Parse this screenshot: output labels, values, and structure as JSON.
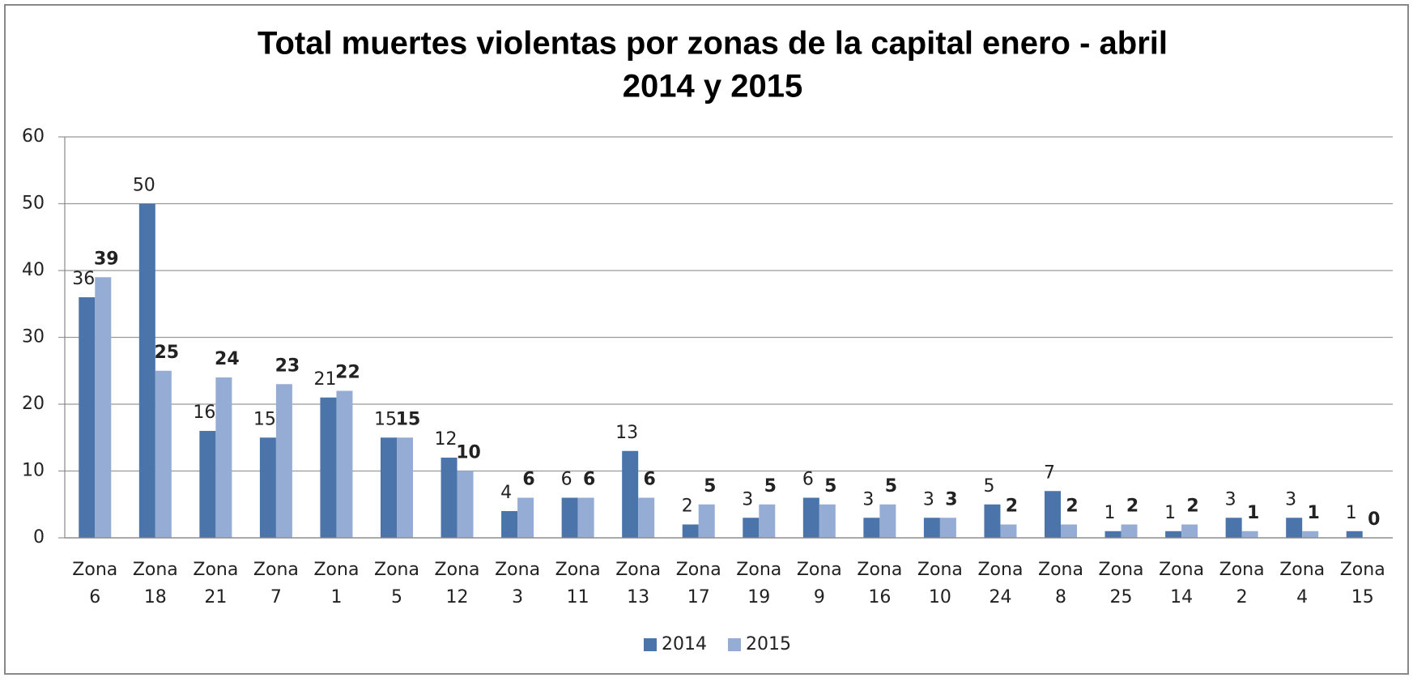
{
  "chart_data": {
    "type": "bar",
    "title": [
      "Total muertes violentas por zonas de la capital enero - abril",
      "2014 y 2015"
    ],
    "categories": [
      "Zona 6",
      "Zona 18",
      "Zona 21",
      "Zona 7",
      "Zona 1",
      "Zona 5",
      "Zona 12",
      "Zona 3",
      "Zona 11",
      "Zona 13",
      "Zona 17",
      "Zona 19",
      "Zona 9",
      "Zona 16",
      "Zona 10",
      "Zona 24",
      "Zona 8",
      "Zona 25",
      "Zona 14",
      "Zona 2",
      "Zona 4",
      "Zona 15"
    ],
    "series": [
      {
        "name": "2014",
        "color": "#4a74aa",
        "values": [
          36,
          50,
          16,
          15,
          21,
          15,
          12,
          4,
          6,
          13,
          2,
          3,
          6,
          3,
          3,
          5,
          7,
          1,
          1,
          3,
          3,
          1
        ]
      },
      {
        "name": "2015",
        "color": "#95acd4",
        "values": [
          39,
          25,
          24,
          23,
          22,
          15,
          10,
          6,
          6,
          6,
          5,
          5,
          5,
          5,
          3,
          2,
          2,
          2,
          2,
          1,
          1,
          0
        ]
      }
    ],
    "ylim": [
      0,
      60
    ],
    "yticks": [
      0,
      10,
      20,
      30,
      40,
      50,
      60
    ],
    "grid": true,
    "legend": "bottom"
  }
}
